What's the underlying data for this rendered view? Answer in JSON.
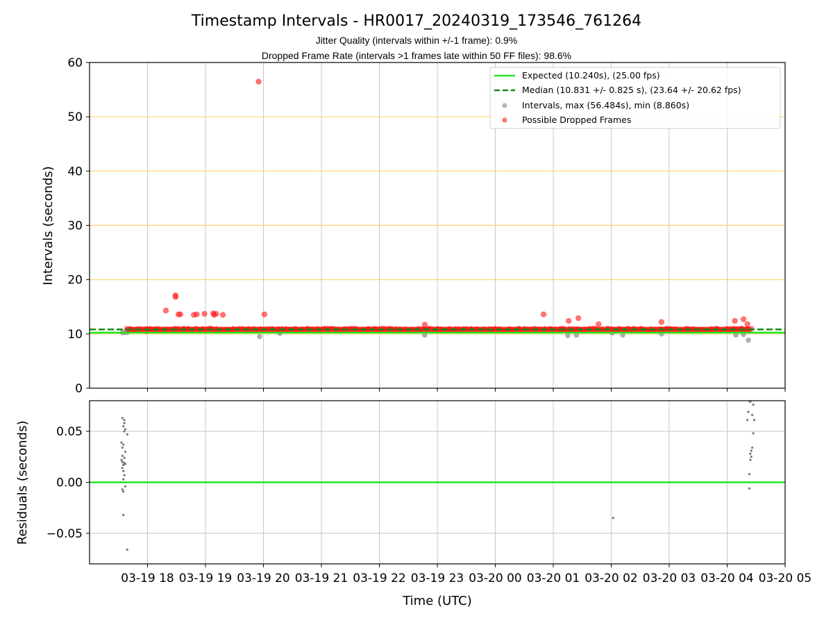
{
  "chart_data": [
    {
      "type": "scatter",
      "title": "Timestamp Intervals - HR0017_20240319_173546_761264",
      "subtitles": [
        "Jitter Quality (intervals within +/-1 frame): 0.9%",
        "Dropped Frame Rate (intervals >1 frames late within 50 FF files): 98.6%"
      ],
      "xlabel": "",
      "ylabel": "Intervals (seconds)",
      "xlim": [
        "2024-03-19 17:00",
        "2024-03-20 05:00"
      ],
      "ylim": [
        0,
        60
      ],
      "yticks": [
        0,
        10,
        20,
        30,
        40,
        50,
        60
      ],
      "ytick_labels": [
        "0",
        "10",
        "20",
        "30",
        "40",
        "50",
        "60"
      ],
      "reference_lines": [
        10,
        20,
        30,
        40,
        50
      ],
      "reference_line_color": "#ffcf6f",
      "grid": "vertical",
      "legend_position": "top-right",
      "legend": [
        "Expected (10.240s), (25.00 fps)",
        "Median (10.831 +/- 0.825 s), (23.64 +/- 20.62 fps)",
        "Intervals, max (56.484s), min (8.860s)",
        "Possible Dropped Frames"
      ],
      "expected_line": {
        "y": 10.24,
        "color": "#22e622"
      },
      "median_line": {
        "y": 10.831,
        "color": "#138a13"
      },
      "band": {
        "x_start": "2024-03-19 17:38",
        "x_end": "2024-03-20 04:25",
        "y_low": 10.3,
        "y_high": 11.3,
        "color": "#ff1a1a"
      },
      "dropped_outliers": [
        {
          "x": "2024-03-19 17:59",
          "y": 10.5
        },
        {
          "x": "2024-03-19 18:19",
          "y": 14.3
        },
        {
          "x": "2024-03-19 18:29",
          "y": 17.1
        },
        {
          "x": "2024-03-19 18:29",
          "y": 16.8
        },
        {
          "x": "2024-03-19 18:32",
          "y": 13.6
        },
        {
          "x": "2024-03-19 18:34",
          "y": 13.6
        },
        {
          "x": "2024-03-19 18:48",
          "y": 13.5
        },
        {
          "x": "2024-03-19 18:51",
          "y": 13.6
        },
        {
          "x": "2024-03-19 18:59",
          "y": 13.7
        },
        {
          "x": "2024-03-19 19:08",
          "y": 13.8
        },
        {
          "x": "2024-03-19 19:09",
          "y": 13.5
        },
        {
          "x": "2024-03-19 19:11",
          "y": 13.7
        },
        {
          "x": "2024-03-19 19:18",
          "y": 13.5
        },
        {
          "x": "2024-03-19 19:55",
          "y": 56.48
        },
        {
          "x": "2024-03-19 20:01",
          "y": 13.6
        },
        {
          "x": "2024-03-19 22:47",
          "y": 11.7
        },
        {
          "x": "2024-03-20 00:50",
          "y": 13.6
        },
        {
          "x": "2024-03-20 01:16",
          "y": 12.4
        },
        {
          "x": "2024-03-20 01:26",
          "y": 12.9
        },
        {
          "x": "2024-03-20 01:47",
          "y": 11.8
        },
        {
          "x": "2024-03-20 02:52",
          "y": 12.2
        },
        {
          "x": "2024-03-20 04:08",
          "y": 12.4
        },
        {
          "x": "2024-03-20 04:17",
          "y": 12.7
        },
        {
          "x": "2024-03-20 04:21",
          "y": 11.8
        }
      ],
      "intervals_outliers": [
        {
          "x": "2024-03-19 17:34",
          "y": 10.25
        },
        {
          "x": "2024-03-19 17:36",
          "y": 10.26
        },
        {
          "x": "2024-03-19 17:39",
          "y": 10.26
        },
        {
          "x": "2024-03-19 19:56",
          "y": 9.5
        },
        {
          "x": "2024-03-19 20:17",
          "y": 10.1
        },
        {
          "x": "2024-03-19 22:47",
          "y": 9.8
        },
        {
          "x": "2024-03-20 01:15",
          "y": 9.7
        },
        {
          "x": "2024-03-20 01:24",
          "y": 9.8
        },
        {
          "x": "2024-03-20 02:01",
          "y": 10.2
        },
        {
          "x": "2024-03-20 02:12",
          "y": 9.8
        },
        {
          "x": "2024-03-20 02:52",
          "y": 10.0
        },
        {
          "x": "2024-03-20 04:09",
          "y": 9.8
        },
        {
          "x": "2024-03-20 04:17",
          "y": 9.9
        },
        {
          "x": "2024-03-20 04:22",
          "y": 8.86
        }
      ],
      "colors": {
        "dropped": "#ff1a1a",
        "intervals": "#9a9a9a"
      }
    },
    {
      "type": "scatter",
      "xlabel": "Time (UTC)",
      "ylabel": "Residuals (seconds)",
      "xlim": [
        "2024-03-19 17:00",
        "2024-03-20 05:00"
      ],
      "ylim": [
        -0.08,
        0.08
      ],
      "yticks": [
        -0.05,
        0.0,
        0.05
      ],
      "ytick_labels": [
        "−0.05",
        "0.00",
        "0.05"
      ],
      "xticks": [
        "2024-03-19 18:00",
        "2024-03-19 19:00",
        "2024-03-19 20:00",
        "2024-03-19 21:00",
        "2024-03-19 22:00",
        "2024-03-19 23:00",
        "2024-03-20 00:00",
        "2024-03-20 01:00",
        "2024-03-20 02:00",
        "2024-03-20 03:00",
        "2024-03-20 04:00",
        "2024-03-20 05:00"
      ],
      "xtick_labels": [
        "03-19 18",
        "03-19 19",
        "03-19 20",
        "03-19 21",
        "03-19 22",
        "03-19 23",
        "03-20 00",
        "03-20 01",
        "03-20 02",
        "03-20 03",
        "03-20 04",
        "03-20 05"
      ],
      "grid": "both",
      "zero_line": {
        "y": 0,
        "color": "#22e622"
      },
      "point_color": "#777777",
      "points": [
        {
          "x": "2024-03-19 17:34",
          "y": 0.063
        },
        {
          "x": "2024-03-19 17:36",
          "y": 0.061
        },
        {
          "x": "2024-03-19 17:36",
          "y": 0.058
        },
        {
          "x": "2024-03-19 17:35",
          "y": 0.055
        },
        {
          "x": "2024-03-19 17:37",
          "y": 0.052
        },
        {
          "x": "2024-03-19 17:36",
          "y": 0.05
        },
        {
          "x": "2024-03-19 17:39",
          "y": 0.047
        },
        {
          "x": "2024-03-19 17:33",
          "y": 0.039
        },
        {
          "x": "2024-03-19 17:35",
          "y": 0.037
        },
        {
          "x": "2024-03-19 17:34",
          "y": 0.034
        },
        {
          "x": "2024-03-19 17:37",
          "y": 0.03
        },
        {
          "x": "2024-03-19 17:34",
          "y": 0.026
        },
        {
          "x": "2024-03-19 17:36",
          "y": 0.024
        },
        {
          "x": "2024-03-19 17:33",
          "y": 0.022
        },
        {
          "x": "2024-03-19 17:34",
          "y": 0.02
        },
        {
          "x": "2024-03-19 17:36",
          "y": 0.019
        },
        {
          "x": "2024-03-19 17:37",
          "y": 0.018
        },
        {
          "x": "2024-03-19 17:35",
          "y": 0.017
        },
        {
          "x": "2024-03-19 17:34",
          "y": 0.014
        },
        {
          "x": "2024-03-19 17:35",
          "y": 0.011
        },
        {
          "x": "2024-03-19 17:36",
          "y": 0.007
        },
        {
          "x": "2024-03-19 17:35",
          "y": 0.003
        },
        {
          "x": "2024-03-19 17:37",
          "y": -0.004
        },
        {
          "x": "2024-03-19 17:34",
          "y": -0.007
        },
        {
          "x": "2024-03-19 17:35",
          "y": -0.009
        },
        {
          "x": "2024-03-19 17:35",
          "y": -0.032
        },
        {
          "x": "2024-03-19 17:39",
          "y": -0.066
        },
        {
          "x": "2024-03-20 02:02",
          "y": -0.035
        },
        {
          "x": "2024-03-20 04:23",
          "y": 0.08
        },
        {
          "x": "2024-03-20 04:24",
          "y": 0.079
        },
        {
          "x": "2024-03-20 04:27",
          "y": 0.076
        },
        {
          "x": "2024-03-20 04:22",
          "y": 0.069
        },
        {
          "x": "2024-03-20 04:26",
          "y": 0.066
        },
        {
          "x": "2024-03-20 04:21",
          "y": 0.061
        },
        {
          "x": "2024-03-20 04:28",
          "y": 0.061
        },
        {
          "x": "2024-03-20 04:27",
          "y": 0.048
        },
        {
          "x": "2024-03-20 04:26",
          "y": 0.034
        },
        {
          "x": "2024-03-20 04:25",
          "y": 0.031
        },
        {
          "x": "2024-03-20 04:24",
          "y": 0.028
        },
        {
          "x": "2024-03-20 04:25",
          "y": 0.025
        },
        {
          "x": "2024-03-20 04:24",
          "y": 0.022
        },
        {
          "x": "2024-03-20 04:23",
          "y": 0.008
        },
        {
          "x": "2024-03-20 04:23",
          "y": -0.006
        }
      ]
    }
  ]
}
